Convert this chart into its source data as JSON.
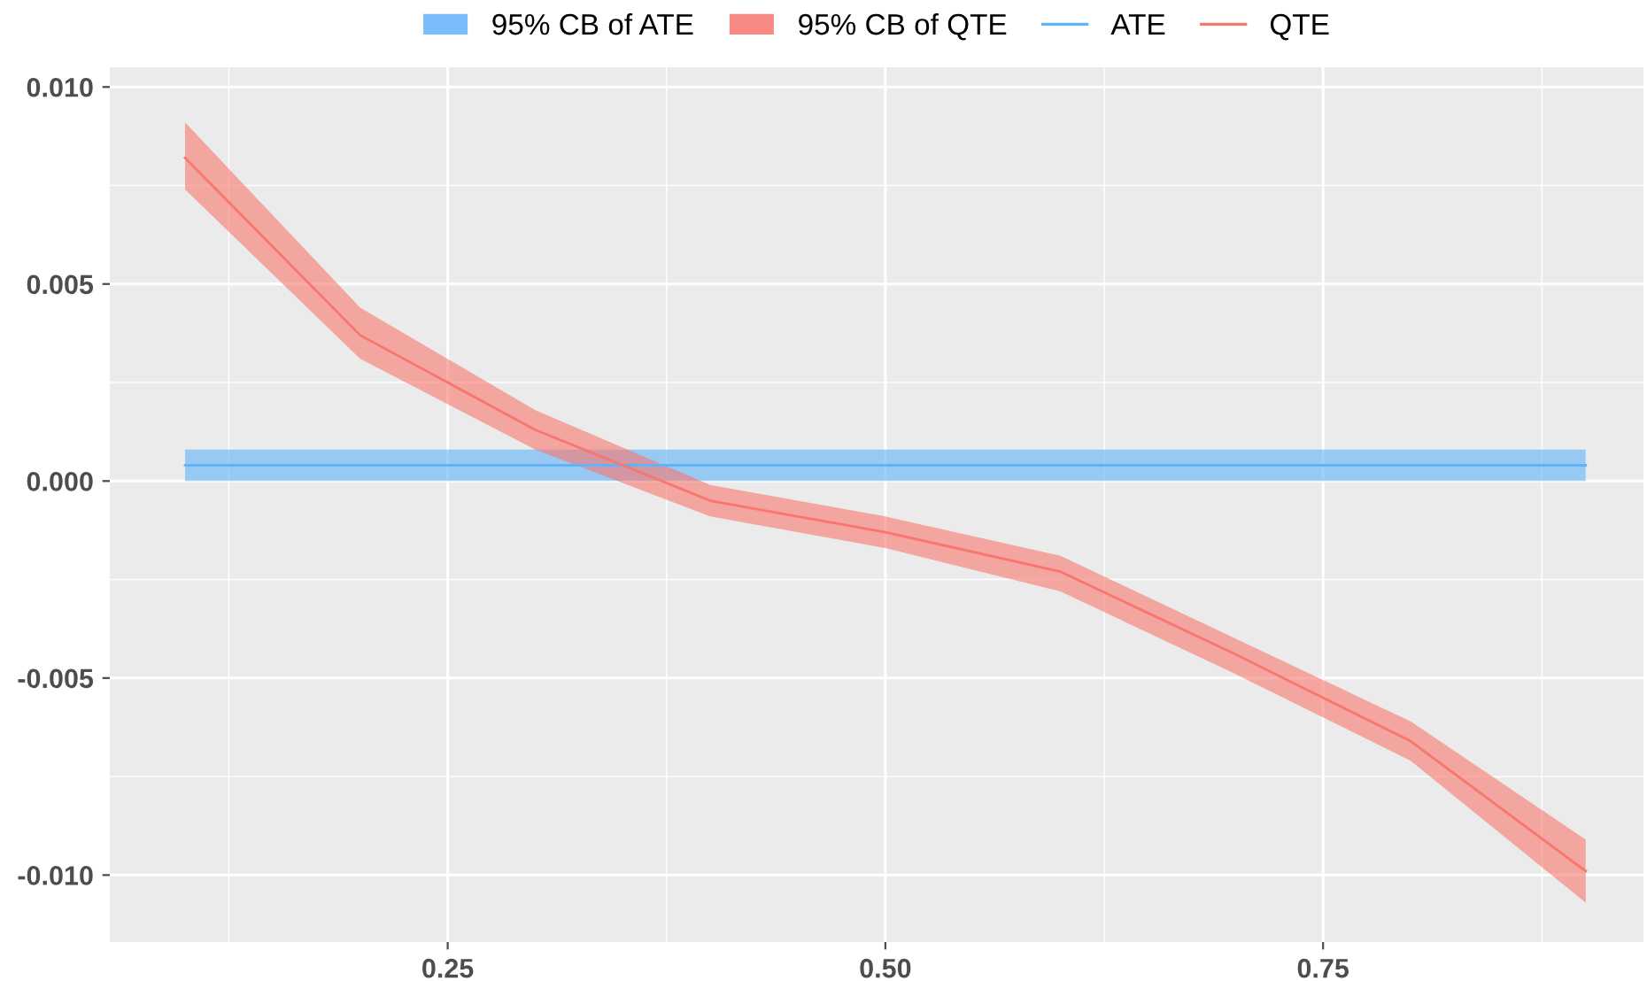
{
  "chart_data": {
    "type": "line",
    "x": [
      0.1,
      0.2,
      0.3,
      0.4,
      0.5,
      0.6,
      0.7,
      0.8,
      0.9
    ],
    "series": [
      {
        "name": "ATE",
        "color": "#61b3f9",
        "values": [
          0.0004,
          0.0004,
          0.0004,
          0.0004,
          0.0004,
          0.0004,
          0.0004,
          0.0004,
          0.0004
        ],
        "lower": [
          0,
          0,
          0,
          0,
          0,
          0,
          0,
          0,
          0
        ],
        "upper": [
          0.0008,
          0.0008,
          0.0008,
          0.0008,
          0.0008,
          0.0008,
          0.0008,
          0.0008,
          0.0008
        ]
      },
      {
        "name": "QTE",
        "color": "#f8766d",
        "values": [
          0.0082,
          0.0037,
          0.0013,
          -0.0005,
          -0.0013,
          -0.0023,
          -0.0044,
          -0.0066,
          -0.0099
        ],
        "lower": [
          0.0074,
          0.0031,
          0.0008,
          -0.0009,
          -0.0017,
          -0.0028,
          -0.0049,
          -0.0071,
          -0.0107
        ],
        "upper": [
          0.0091,
          0.0044,
          0.0018,
          -0.0001,
          -0.0009,
          -0.0019,
          -0.004,
          -0.0061,
          -0.0091
        ]
      }
    ],
    "annotations": [
      "95% CB of ATE",
      "95% CB of QTE"
    ],
    "xlim": [
      0.057,
      0.933
    ],
    "xticks": [
      {
        "value": 0.25,
        "label": "0.25"
      },
      {
        "value": 0.5,
        "label": "0.50"
      },
      {
        "value": 0.75,
        "label": "0.75"
      }
    ],
    "ylim": [
      -0.0117,
      0.0105
    ],
    "yticks": [
      {
        "value": -0.01,
        "label": "-0.010"
      },
      {
        "value": -0.005,
        "label": "-0.005"
      },
      {
        "value": 0,
        "label": "0.000"
      },
      {
        "value": 0.005,
        "label": "0.005"
      },
      {
        "value": 0.01,
        "label": "0.010"
      }
    ],
    "grid": true,
    "legend": "top"
  }
}
